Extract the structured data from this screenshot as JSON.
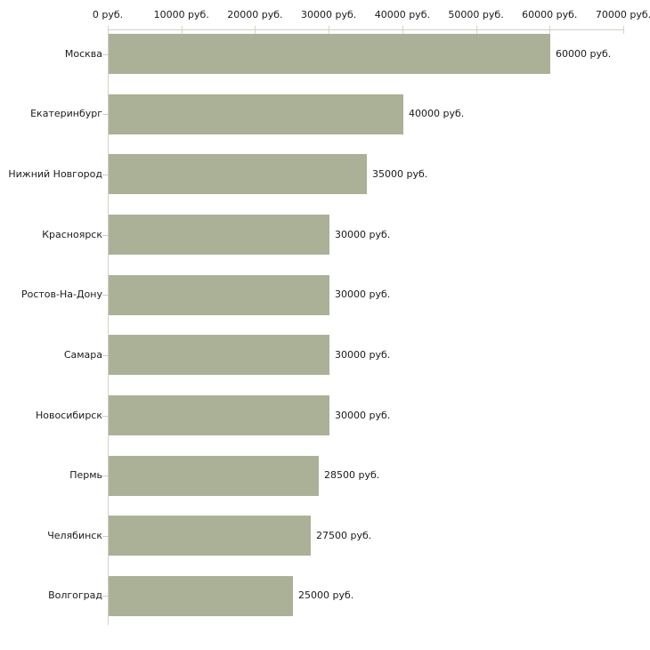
{
  "chart_data": {
    "type": "bar",
    "orientation": "horizontal",
    "title": "",
    "xlabel": "",
    "ylabel": "",
    "unit": "руб.",
    "categories": [
      "Москва",
      "Екатеринбург",
      "Нижний Новгород",
      "Красноярск",
      "Ростов-На-Дону",
      "Самара",
      "Новосибирск",
      "Пермь",
      "Челябинск",
      "Волгоград"
    ],
    "values": [
      60000,
      40000,
      35000,
      30000,
      30000,
      30000,
      30000,
      28500,
      27500,
      25000
    ],
    "value_labels": [
      "60000 руб.",
      "40000 руб.",
      "35000 руб.",
      "30000 руб.",
      "30000 руб.",
      "30000 руб.",
      "30000 руб.",
      "28500 руб.",
      "27500 руб.",
      "25000 руб."
    ],
    "x_axis": {
      "position": "top",
      "range": [
        0,
        70000
      ],
      "ticks": [
        0,
        10000,
        20000,
        30000,
        40000,
        50000,
        60000,
        70000
      ],
      "tick_labels": [
        "0 руб.",
        "10000 руб.",
        "20000 руб.",
        "30000 руб.",
        "40000 руб.",
        "50000 руб.",
        "60000 руб.",
        "70000 руб."
      ]
    },
    "grid": false,
    "legend": false,
    "colors": {
      "bar_fill": "#abb197",
      "axis_line": "#d2d0c6",
      "axis_tick": "#d9d6b4",
      "category_tick": "#cccccc",
      "text": "#1a1a1a",
      "background": "#ffffff"
    }
  }
}
